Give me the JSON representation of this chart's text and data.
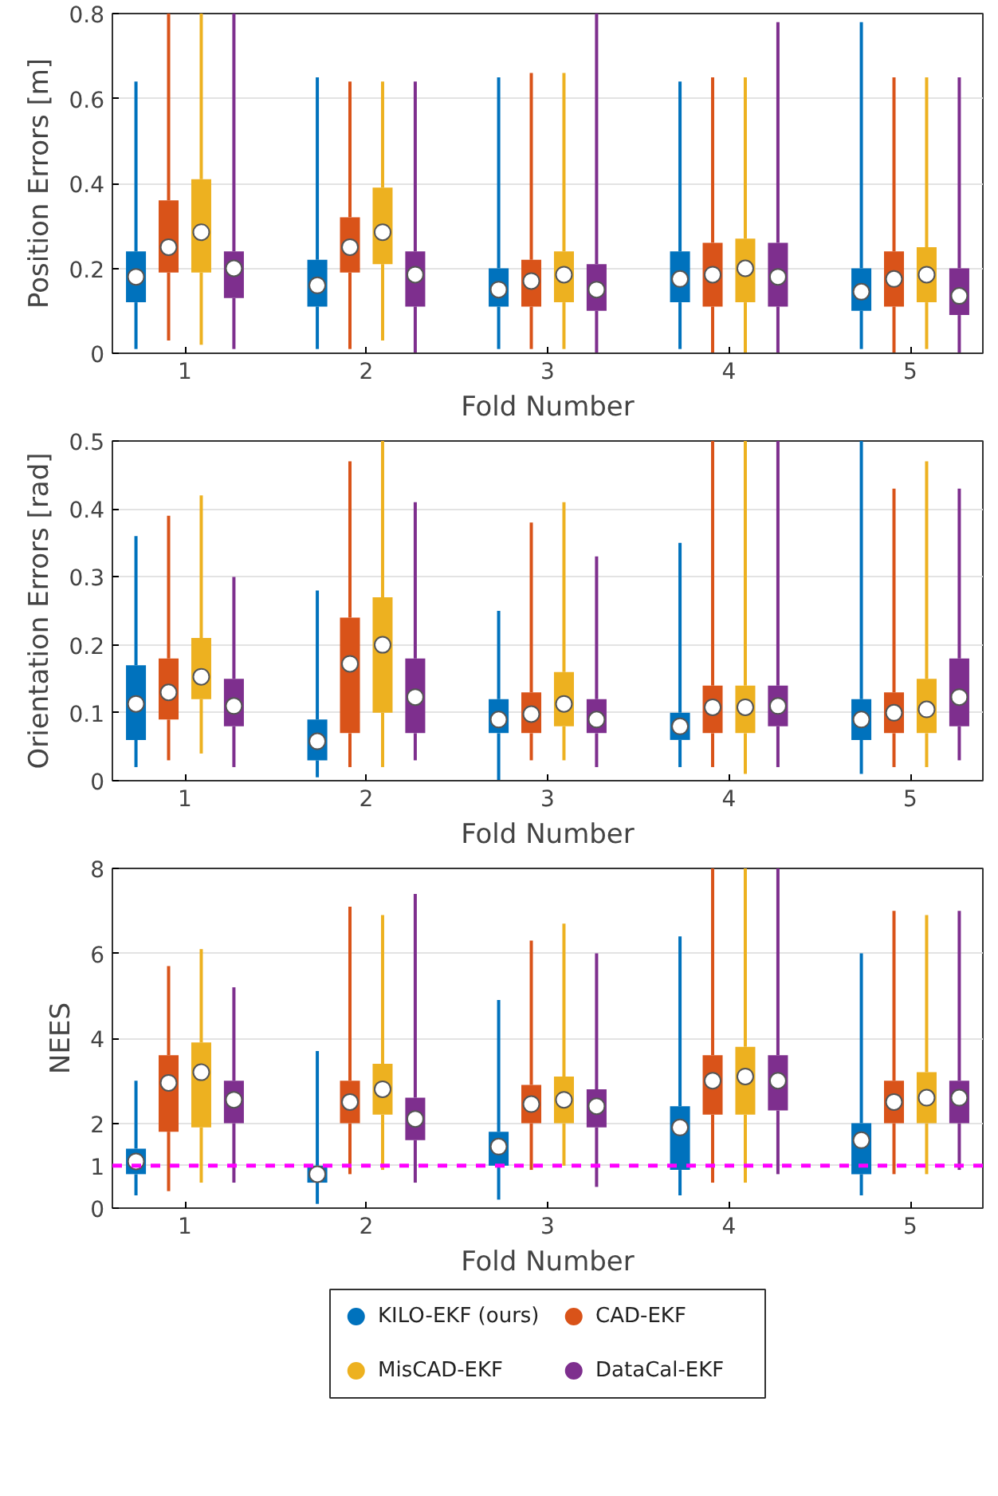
{
  "chart_data": [
    {
      "type": "box",
      "ylabel": "Position Errors [m]",
      "xlabel": "Fold Number",
      "categories": [
        "1",
        "2",
        "3",
        "4",
        "5"
      ],
      "ylim": [
        0,
        0.8
      ],
      "yticks": [
        0,
        0.2,
        0.4,
        0.6,
        0.8
      ],
      "grid": "y",
      "legend": false,
      "series": [
        {
          "color": "#0072bd",
          "boxes": [
            {
              "low": 0.01,
              "q1": 0.12,
              "median": 0.18,
              "q3": 0.24,
              "high": 0.64
            },
            {
              "low": 0.01,
              "q1": 0.11,
              "median": 0.16,
              "q3": 0.22,
              "high": 0.65
            },
            {
              "low": 0.01,
              "q1": 0.11,
              "median": 0.15,
              "q3": 0.2,
              "high": 0.65
            },
            {
              "low": 0.01,
              "q1": 0.12,
              "median": 0.175,
              "q3": 0.24,
              "high": 0.64
            },
            {
              "low": 0.01,
              "q1": 0.1,
              "median": 0.145,
              "q3": 0.2,
              "high": 0.78
            }
          ]
        },
        {
          "color": "#d95319",
          "boxes": [
            {
              "low": 0.03,
              "q1": 0.19,
              "median": 0.25,
              "q3": 0.36,
              "high": 0.8
            },
            {
              "low": 0.01,
              "q1": 0.19,
              "median": 0.25,
              "q3": 0.32,
              "high": 0.64
            },
            {
              "low": 0.01,
              "q1": 0.11,
              "median": 0.17,
              "q3": 0.22,
              "high": 0.66
            },
            {
              "low": 0.0,
              "q1": 0.11,
              "median": 0.185,
              "q3": 0.26,
              "high": 0.65
            },
            {
              "low": 0.0,
              "q1": 0.11,
              "median": 0.175,
              "q3": 0.24,
              "high": 0.65
            }
          ]
        },
        {
          "color": "#edb120",
          "boxes": [
            {
              "low": 0.02,
              "q1": 0.19,
              "median": 0.285,
              "q3": 0.41,
              "high": 0.8
            },
            {
              "low": 0.03,
              "q1": 0.21,
              "median": 0.285,
              "q3": 0.39,
              "high": 0.64
            },
            {
              "low": 0.01,
              "q1": 0.12,
              "median": 0.185,
              "q3": 0.24,
              "high": 0.66
            },
            {
              "low": 0.0,
              "q1": 0.12,
              "median": 0.2,
              "q3": 0.27,
              "high": 0.65
            },
            {
              "low": 0.01,
              "q1": 0.12,
              "median": 0.185,
              "q3": 0.25,
              "high": 0.65
            }
          ]
        },
        {
          "color": "#7e2f8e",
          "boxes": [
            {
              "low": 0.01,
              "q1": 0.13,
              "median": 0.2,
              "q3": 0.24,
              "high": 0.8
            },
            {
              "low": 0.0,
              "q1": 0.11,
              "median": 0.185,
              "q3": 0.24,
              "high": 0.64
            },
            {
              "low": 0.0,
              "q1": 0.1,
              "median": 0.15,
              "q3": 0.21,
              "high": 0.8
            },
            {
              "low": 0.0,
              "q1": 0.11,
              "median": 0.18,
              "q3": 0.26,
              "high": 0.78
            },
            {
              "low": 0.0,
              "q1": 0.09,
              "median": 0.135,
              "q3": 0.2,
              "high": 0.65
            }
          ]
        }
      ]
    },
    {
      "type": "box",
      "ylabel": "Orientation Errors [rad]",
      "xlabel": "Fold Number",
      "categories": [
        "1",
        "2",
        "3",
        "4",
        "5"
      ],
      "ylim": [
        0,
        0.5
      ],
      "yticks": [
        0,
        0.1,
        0.2,
        0.3,
        0.4,
        0.5
      ],
      "grid": "y",
      "legend": false,
      "series": [
        {
          "color": "#0072bd",
          "boxes": [
            {
              "low": 0.02,
              "q1": 0.06,
              "median": 0.113,
              "q3": 0.17,
              "high": 0.36
            },
            {
              "low": 0.005,
              "q1": 0.03,
              "median": 0.058,
              "q3": 0.09,
              "high": 0.28
            },
            {
              "low": 0.0,
              "q1": 0.07,
              "median": 0.09,
              "q3": 0.12,
              "high": 0.25
            },
            {
              "low": 0.02,
              "q1": 0.06,
              "median": 0.08,
              "q3": 0.1,
              "high": 0.35
            },
            {
              "low": 0.01,
              "q1": 0.06,
              "median": 0.09,
              "q3": 0.12,
              "high": 0.5
            }
          ]
        },
        {
          "color": "#d95319",
          "boxes": [
            {
              "low": 0.03,
              "q1": 0.09,
              "median": 0.13,
              "q3": 0.18,
              "high": 0.39
            },
            {
              "low": 0.02,
              "q1": 0.07,
              "median": 0.172,
              "q3": 0.24,
              "high": 0.47
            },
            {
              "low": 0.03,
              "q1": 0.07,
              "median": 0.098,
              "q3": 0.13,
              "high": 0.38
            },
            {
              "low": 0.02,
              "q1": 0.07,
              "median": 0.108,
              "q3": 0.14,
              "high": 0.5
            },
            {
              "low": 0.02,
              "q1": 0.07,
              "median": 0.1,
              "q3": 0.13,
              "high": 0.43
            }
          ]
        },
        {
          "color": "#edb120",
          "boxes": [
            {
              "low": 0.04,
              "q1": 0.12,
              "median": 0.153,
              "q3": 0.21,
              "high": 0.42
            },
            {
              "low": 0.02,
              "q1": 0.1,
              "median": 0.2,
              "q3": 0.27,
              "high": 0.5
            },
            {
              "low": 0.03,
              "q1": 0.08,
              "median": 0.113,
              "q3": 0.16,
              "high": 0.41
            },
            {
              "low": 0.01,
              "q1": 0.07,
              "median": 0.108,
              "q3": 0.14,
              "high": 0.5
            },
            {
              "low": 0.02,
              "q1": 0.07,
              "median": 0.105,
              "q3": 0.15,
              "high": 0.47
            }
          ]
        },
        {
          "color": "#7e2f8e",
          "boxes": [
            {
              "low": 0.02,
              "q1": 0.08,
              "median": 0.11,
              "q3": 0.15,
              "high": 0.3
            },
            {
              "low": 0.03,
              "q1": 0.07,
              "median": 0.123,
              "q3": 0.18,
              "high": 0.41
            },
            {
              "low": 0.02,
              "q1": 0.07,
              "median": 0.09,
              "q3": 0.12,
              "high": 0.33
            },
            {
              "low": 0.02,
              "q1": 0.08,
              "median": 0.11,
              "q3": 0.14,
              "high": 0.5
            },
            {
              "low": 0.03,
              "q1": 0.08,
              "median": 0.123,
              "q3": 0.18,
              "high": 0.43
            }
          ]
        }
      ]
    },
    {
      "type": "box",
      "ylabel": "NEES",
      "xlabel": "Fold Number",
      "categories": [
        "1",
        "2",
        "3",
        "4",
        "5"
      ],
      "ylim": [
        0,
        8
      ],
      "yticks": [
        0,
        1,
        2,
        4,
        6,
        8
      ],
      "grid": "y",
      "legend": "bottom",
      "ref_lines": [
        {
          "axis": "y",
          "value": 1,
          "color": "#ff00ff",
          "line_style": "dashed"
        }
      ],
      "series": [
        {
          "name": "KILO-EKF (ours)",
          "color": "#0072bd",
          "boxes": [
            {
              "low": 0.3,
              "q1": 0.8,
              "median": 1.1,
              "q3": 1.4,
              "high": 3.0
            },
            {
              "low": 0.1,
              "q1": 0.6,
              "median": 0.8,
              "q3": 1.0,
              "high": 3.7
            },
            {
              "low": 0.2,
              "q1": 1.0,
              "median": 1.45,
              "q3": 1.8,
              "high": 4.9
            },
            {
              "low": 0.3,
              "q1": 0.9,
              "median": 1.9,
              "q3": 2.4,
              "high": 6.4
            },
            {
              "low": 0.3,
              "q1": 0.8,
              "median": 1.6,
              "q3": 2.0,
              "high": 6.0
            }
          ]
        },
        {
          "name": "CAD-EKF",
          "color": "#d95319",
          "boxes": [
            {
              "low": 0.4,
              "q1": 1.8,
              "median": 2.95,
              "q3": 3.6,
              "high": 5.7
            },
            {
              "low": 0.8,
              "q1": 2.0,
              "median": 2.5,
              "q3": 3.0,
              "high": 7.1
            },
            {
              "low": 0.9,
              "q1": 2.0,
              "median": 2.45,
              "q3": 2.9,
              "high": 6.3
            },
            {
              "low": 0.6,
              "q1": 2.2,
              "median": 3.0,
              "q3": 3.6,
              "high": 8.0
            },
            {
              "low": 0.8,
              "q1": 2.0,
              "median": 2.5,
              "q3": 3.0,
              "high": 7.0
            }
          ]
        },
        {
          "name": "MisCAD-EKF",
          "color": "#edb120",
          "boxes": [
            {
              "low": 0.6,
              "q1": 1.9,
              "median": 3.2,
              "q3": 3.9,
              "high": 6.1
            },
            {
              "low": 0.9,
              "q1": 2.2,
              "median": 2.8,
              "q3": 3.4,
              "high": 6.9
            },
            {
              "low": 1.0,
              "q1": 2.0,
              "median": 2.55,
              "q3": 3.1,
              "high": 6.7
            },
            {
              "low": 0.6,
              "q1": 2.2,
              "median": 3.1,
              "q3": 3.8,
              "high": 8.0
            },
            {
              "low": 0.8,
              "q1": 2.0,
              "median": 2.6,
              "q3": 3.2,
              "high": 6.9
            }
          ]
        },
        {
          "name": "DataCal-EKF",
          "color": "#7e2f8e",
          "boxes": [
            {
              "low": 0.6,
              "q1": 2.0,
              "median": 2.55,
              "q3": 3.0,
              "high": 5.2
            },
            {
              "low": 0.6,
              "q1": 1.6,
              "median": 2.1,
              "q3": 2.6,
              "high": 7.4
            },
            {
              "low": 0.5,
              "q1": 1.9,
              "median": 2.4,
              "q3": 2.8,
              "high": 6.0
            },
            {
              "low": 0.8,
              "q1": 2.3,
              "median": 3.0,
              "q3": 3.6,
              "high": 8.0
            },
            {
              "low": 0.9,
              "q1": 2.0,
              "median": 2.6,
              "q3": 3.0,
              "high": 7.0
            }
          ]
        }
      ]
    }
  ]
}
